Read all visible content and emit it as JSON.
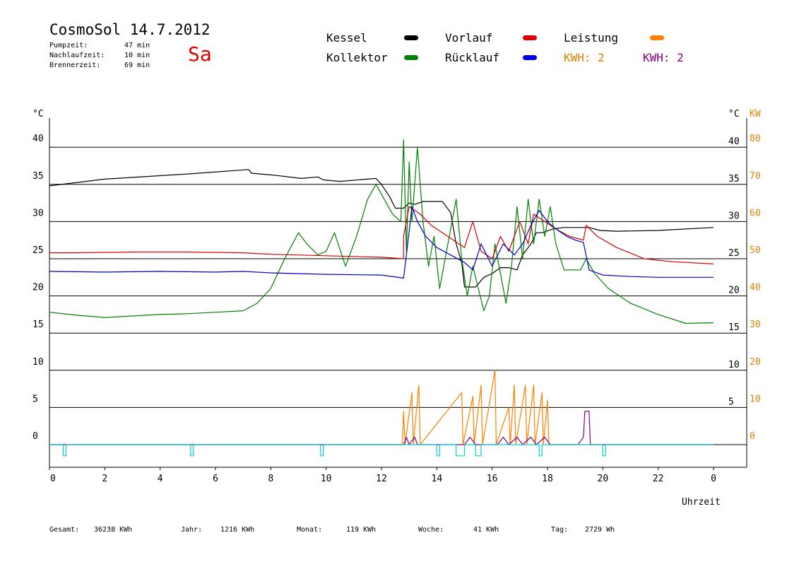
{
  "header": {
    "title": "CosmoSol 14.7.2012",
    "day": "Sa",
    "pump_label": "Pumpzeit:",
    "pump_value": "47 min",
    "nachlauf_label": "Nachlaufzeit:",
    "nachlauf_value": "10 min",
    "brenner_label": "Brennerzeit:",
    "brenner_value": "69 min"
  },
  "legend": {
    "kessel": "Kessel",
    "kollektor": "Kollektor",
    "vorlauf": "Vorlauf",
    "ruecklauf": "Rücklauf",
    "leistung": "Leistung",
    "kwh1": "KWH: 2",
    "kwh2": "KWH: 2"
  },
  "footer": {
    "gesamt_label": "Gesamt:",
    "gesamt_value": "36238 KWh",
    "jahr_label": "Jahr:",
    "jahr_value": "1216 KWh",
    "monat_label": "Monat:",
    "monat_value": "119 KWh",
    "woche_label": "Woche:",
    "woche_value": "41 KWh",
    "tag_label": "Tag:",
    "tag_value": "2729 Wh"
  },
  "colors": {
    "kessel": "#000000",
    "kollektor": "#008000",
    "vorlauf": "#d00000",
    "ruecklauf": "#0000c0",
    "leistung": "#ff8000",
    "kwh": "#800080",
    "pump": "#00d0d0",
    "kw_axis": "#e08000"
  },
  "chart_data": {
    "type": "line",
    "title": "CosmoSol 14.7.2012",
    "xlabel": "Uhrzeit",
    "ylabel_left": "°C",
    "ylabel_right": "°C",
    "ylabel_right2": "KW",
    "xlim": [
      0,
      24
    ],
    "ylim": [
      0,
      45
    ],
    "y2lim": [
      0,
      90
    ],
    "x_ticks": [
      "0",
      "2",
      "4",
      "6",
      "8",
      "10",
      "12",
      "14",
      "16",
      "18",
      "20",
      "22",
      "0"
    ],
    "y_ticks": [
      0,
      5,
      10,
      15,
      20,
      25,
      30,
      35,
      40
    ],
    "y_ticks_right": [
      "5",
      "10",
      "15",
      "20",
      "25",
      "30",
      "35",
      "40"
    ],
    "y2_ticks": [
      "0",
      "10",
      "20",
      "30",
      "40",
      "50",
      "60",
      "70",
      "80"
    ],
    "grid": true,
    "series": [
      {
        "name": "Kessel",
        "color": "#000000",
        "points": [
          [
            0,
            34.8
          ],
          [
            2,
            35.7
          ],
          [
            5,
            36.4
          ],
          [
            7.2,
            37
          ],
          [
            7.3,
            36.5
          ],
          [
            8.2,
            36.2
          ],
          [
            9.1,
            35.8
          ],
          [
            9.7,
            36
          ],
          [
            9.9,
            35.6
          ],
          [
            10.5,
            35.4
          ],
          [
            11.8,
            35.8
          ],
          [
            12.0,
            35
          ],
          [
            12.3,
            33.3
          ],
          [
            12.5,
            31.8
          ],
          [
            12.8,
            31.8
          ],
          [
            13.0,
            32.5
          ],
          [
            13.2,
            32.3
          ],
          [
            13.5,
            32.7
          ],
          [
            14.2,
            32.7
          ],
          [
            14.5,
            31.2
          ],
          [
            14.7,
            27
          ],
          [
            14.9,
            24.5
          ],
          [
            15.0,
            21.2
          ],
          [
            15.4,
            21.2
          ],
          [
            15.7,
            22.5
          ],
          [
            16.0,
            23
          ],
          [
            16.3,
            23.8
          ],
          [
            16.6,
            23.8
          ],
          [
            16.9,
            23.5
          ],
          [
            17.1,
            25.5
          ],
          [
            17.4,
            27
          ],
          [
            17.6,
            28.5
          ],
          [
            17.8,
            28.5
          ],
          [
            18.2,
            29
          ],
          [
            18.6,
            29.2
          ],
          [
            19.5,
            29.2
          ],
          [
            19.9,
            28.8
          ],
          [
            20.5,
            28.7
          ],
          [
            22,
            28.8
          ],
          [
            24,
            29.2
          ]
        ]
      },
      {
        "name": "Kollektor",
        "color": "#008000",
        "points": [
          [
            0,
            17.8
          ],
          [
            1,
            17.4
          ],
          [
            2,
            17.1
          ],
          [
            3,
            17.3
          ],
          [
            4,
            17.5
          ],
          [
            5,
            17.6
          ],
          [
            6,
            17.8
          ],
          [
            7,
            18
          ],
          [
            7.5,
            19
          ],
          [
            8,
            21
          ],
          [
            8.5,
            25
          ],
          [
            9,
            28.5
          ],
          [
            9.3,
            27
          ],
          [
            9.7,
            25.5
          ],
          [
            10,
            26
          ],
          [
            10.3,
            28.5
          ],
          [
            10.7,
            24
          ],
          [
            11.1,
            28
          ],
          [
            11.5,
            33
          ],
          [
            11.8,
            35
          ],
          [
            12.1,
            33
          ],
          [
            12.4,
            31
          ],
          [
            12.7,
            30
          ],
          [
            12.8,
            41
          ],
          [
            12.9,
            26
          ],
          [
            13.0,
            38
          ],
          [
            13.1,
            30
          ],
          [
            13.3,
            40
          ],
          [
            13.5,
            30
          ],
          [
            13.7,
            24
          ],
          [
            13.9,
            28
          ],
          [
            14.1,
            21
          ],
          [
            14.4,
            27
          ],
          [
            14.7,
            33
          ],
          [
            14.9,
            25
          ],
          [
            15.1,
            20
          ],
          [
            15.3,
            24
          ],
          [
            15.5,
            21
          ],
          [
            15.7,
            18
          ],
          [
            15.9,
            20
          ],
          [
            16.1,
            27
          ],
          [
            16.3,
            23
          ],
          [
            16.5,
            19
          ],
          [
            16.7,
            24
          ],
          [
            16.9,
            32
          ],
          [
            17.1,
            25
          ],
          [
            17.3,
            33
          ],
          [
            17.5,
            27
          ],
          [
            17.7,
            33
          ],
          [
            17.9,
            28
          ],
          [
            18.1,
            32
          ],
          [
            18.3,
            27
          ],
          [
            18.6,
            23.5
          ],
          [
            19.0,
            23.5
          ],
          [
            19.2,
            23.5
          ],
          [
            19.4,
            25
          ],
          [
            19.7,
            23
          ],
          [
            20.2,
            21
          ],
          [
            21,
            19
          ],
          [
            22,
            17.5
          ],
          [
            23,
            16.3
          ],
          [
            24,
            16.4
          ]
        ]
      },
      {
        "name": "Vorlauf",
        "color": "#d00000",
        "points": [
          [
            0,
            25.8
          ],
          [
            1,
            25.8
          ],
          [
            3,
            25.9
          ],
          [
            5,
            25.9
          ],
          [
            7,
            25.8
          ],
          [
            8,
            25.6
          ],
          [
            10,
            25.4
          ],
          [
            12,
            25.2
          ],
          [
            12.8,
            25
          ],
          [
            12.8,
            28
          ],
          [
            13.0,
            32
          ],
          [
            13.4,
            31
          ],
          [
            13.8,
            29.5
          ],
          [
            14.2,
            28.5
          ],
          [
            14.6,
            27.5
          ],
          [
            15.0,
            26.5
          ],
          [
            15.3,
            30
          ],
          [
            15.6,
            26
          ],
          [
            16.0,
            25
          ],
          [
            16.3,
            28
          ],
          [
            16.6,
            26
          ],
          [
            17.0,
            30
          ],
          [
            17.3,
            27
          ],
          [
            17.5,
            31
          ],
          [
            17.9,
            30
          ],
          [
            18.3,
            29
          ],
          [
            18.8,
            28
          ],
          [
            19.0,
            27.8
          ],
          [
            19.3,
            27.5
          ],
          [
            19.4,
            29.5
          ],
          [
            19.8,
            28
          ],
          [
            20.5,
            26.5
          ],
          [
            21.5,
            25
          ],
          [
            22.5,
            24.6
          ],
          [
            24,
            24.3
          ]
        ]
      },
      {
        "name": "Rücklauf",
        "color": "#0000c0",
        "points": [
          [
            0,
            23.3
          ],
          [
            2,
            23.2
          ],
          [
            4,
            23.3
          ],
          [
            6,
            23.2
          ],
          [
            7,
            23.3
          ],
          [
            8,
            23.1
          ],
          [
            10,
            22.9
          ],
          [
            12,
            22.8
          ],
          [
            12.8,
            22.4
          ],
          [
            12.9,
            25.5
          ],
          [
            13.1,
            32
          ],
          [
            13.3,
            30
          ],
          [
            13.6,
            28
          ],
          [
            14.0,
            26.5
          ],
          [
            14.5,
            25.5
          ],
          [
            15.0,
            24.5
          ],
          [
            15.3,
            23.5
          ],
          [
            15.6,
            27
          ],
          [
            16.0,
            24
          ],
          [
            16.4,
            27
          ],
          [
            16.8,
            25.5
          ],
          [
            17.1,
            27
          ],
          [
            17.4,
            29.5
          ],
          [
            17.7,
            31.5
          ],
          [
            18.0,
            30
          ],
          [
            18.3,
            29
          ],
          [
            18.7,
            28
          ],
          [
            19.0,
            27.5
          ],
          [
            19.3,
            27.2
          ],
          [
            19.5,
            23.5
          ],
          [
            20,
            22.8
          ],
          [
            21,
            22.6
          ],
          [
            22,
            22.5
          ],
          [
            24,
            22.5
          ]
        ]
      },
      {
        "name": "Leistung",
        "color": "#ff8000",
        "points": [
          [
            0,
            0
          ],
          [
            12.75,
            0
          ],
          [
            12.8,
            4.5
          ],
          [
            12.85,
            0
          ],
          [
            13.1,
            7
          ],
          [
            13.15,
            0
          ],
          [
            13.35,
            8
          ],
          [
            13.4,
            0
          ],
          [
            14.9,
            7
          ],
          [
            14.95,
            0
          ],
          [
            15.3,
            6.5
          ],
          [
            15.35,
            0
          ],
          [
            15.6,
            8
          ],
          [
            15.65,
            0
          ],
          [
            16.1,
            10
          ],
          [
            16.15,
            0
          ],
          [
            16.6,
            5
          ],
          [
            16.65,
            0
          ],
          [
            16.8,
            8
          ],
          [
            16.85,
            0
          ],
          [
            17.2,
            8
          ],
          [
            17.25,
            0
          ],
          [
            17.5,
            8
          ],
          [
            17.55,
            0
          ],
          [
            17.8,
            7
          ],
          [
            17.85,
            0
          ],
          [
            18.0,
            6
          ],
          [
            18.05,
            0
          ],
          [
            24,
            0
          ]
        ]
      },
      {
        "name": "KWH",
        "color": "#800080",
        "points": [
          [
            0,
            0
          ],
          [
            12.8,
            0
          ],
          [
            12.9,
            1
          ],
          [
            13.0,
            0
          ],
          [
            13.2,
            1
          ],
          [
            13.3,
            0
          ],
          [
            15.0,
            0
          ],
          [
            15.2,
            1
          ],
          [
            15.4,
            0
          ],
          [
            16.2,
            0
          ],
          [
            16.4,
            1
          ],
          [
            16.6,
            0
          ],
          [
            16.9,
            1
          ],
          [
            17.1,
            0
          ],
          [
            17.4,
            1
          ],
          [
            17.6,
            0
          ],
          [
            17.9,
            1
          ],
          [
            18.1,
            0
          ],
          [
            19.1,
            0
          ],
          [
            19.3,
            1
          ],
          [
            19.35,
            4.5
          ],
          [
            19.5,
            4.5
          ],
          [
            19.55,
            0
          ],
          [
            24,
            0
          ]
        ]
      },
      {
        "name": "Pumpe",
        "color": "#00d0d0",
        "points": [
          [
            0,
            0
          ],
          [
            0.5,
            0
          ],
          [
            0.5,
            -1.5
          ],
          [
            0.6,
            -1.5
          ],
          [
            0.6,
            0
          ],
          [
            5.1,
            0
          ],
          [
            5.1,
            -1.5
          ],
          [
            5.2,
            -1.5
          ],
          [
            5.2,
            0
          ],
          [
            9.8,
            0
          ],
          [
            9.8,
            -1.5
          ],
          [
            9.9,
            -1.5
          ],
          [
            9.9,
            0
          ],
          [
            14.0,
            0
          ],
          [
            14.0,
            -1.5
          ],
          [
            14.1,
            -1.5
          ],
          [
            14.1,
            0
          ],
          [
            14.7,
            0
          ],
          [
            14.7,
            -1.5
          ],
          [
            15.0,
            -1.5
          ],
          [
            15.0,
            0
          ],
          [
            15.4,
            0
          ],
          [
            15.4,
            -1.5
          ],
          [
            15.6,
            -1.5
          ],
          [
            15.6,
            0
          ],
          [
            17.7,
            0
          ],
          [
            17.7,
            -1.5
          ],
          [
            17.8,
            -1.5
          ],
          [
            17.8,
            0
          ],
          [
            20.0,
            0
          ],
          [
            20.0,
            -1.5
          ],
          [
            20.1,
            -1.5
          ],
          [
            20.1,
            0
          ],
          [
            24,
            0
          ]
        ]
      }
    ]
  }
}
